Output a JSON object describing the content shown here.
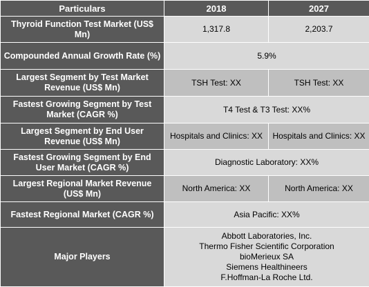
{
  "header": {
    "col0": "Particulars",
    "col1": "2018",
    "col2": "2027"
  },
  "rows": [
    {
      "label": "Thyroid Function Test Market (US$ Mn)",
      "v2018": "1,317.8",
      "v2027": "2,203.7"
    },
    {
      "label": "Compounded Annual Growth Rate (%)",
      "value": "5.9%"
    },
    {
      "label": "Largest Segment by Test Market Revenue (US$ Mn)",
      "v2018": "TSH Test: XX",
      "v2027": "TSH Test: XX"
    },
    {
      "label": "Fastest Growing Segment by Test Market (CAGR %)",
      "value": "T4 Test & T3 Test:  XX%"
    },
    {
      "label": "Largest Segment by End User Revenue (US$ Mn)",
      "v2018": "Hospitals and Clinics: XX",
      "v2027": "Hospitals and Clinics: XX"
    },
    {
      "label": "Fastest Growing Segment by End User Market (CAGR %)",
      "value": "Diagnostic Laboratory:  XX%"
    },
    {
      "label": "Largest Regional Market Revenue (US$ Mn)",
      "v2018": "North America: XX",
      "v2027": "North America: XX"
    },
    {
      "label": "Fastest Regional Market (CAGR %)",
      "value": "Asia Pacific: XX%"
    }
  ],
  "players": {
    "label": "Major Players",
    "list": [
      "Abbott Laboratories, Inc.",
      "Thermo Fisher Scientific Corporation",
      "bioMerieux SA",
      "Siemens Healthineers",
      "F.Hoffman-La Roche Ltd."
    ]
  }
}
